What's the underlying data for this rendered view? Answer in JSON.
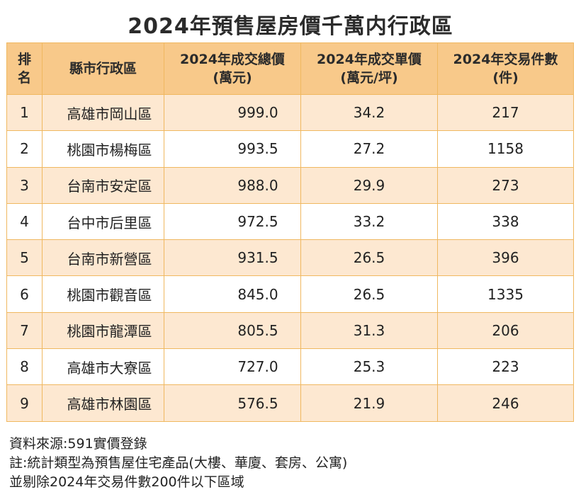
{
  "title": "2024年預售屋房價千萬内行政區",
  "table": {
    "headers": [
      {
        "line1": "排",
        "line2": "名"
      },
      {
        "line1": "縣市行政區",
        "line2": ""
      },
      {
        "line1": "2024年成交總價",
        "line2": "(萬元)"
      },
      {
        "line1": "2024年成交單價",
        "line2": "(萬元/坪)"
      },
      {
        "line1": "2024年交易件數",
        "line2": "(件)"
      }
    ],
    "rows": [
      {
        "rank": "1",
        "district": "高雄市岡山區",
        "total": "999.0",
        "unit": "34.2",
        "count": "217"
      },
      {
        "rank": "2",
        "district": "桃園市楊梅區",
        "total": "993.5",
        "unit": "27.2",
        "count": "1158"
      },
      {
        "rank": "3",
        "district": "台南市安定區",
        "total": "988.0",
        "unit": "29.9",
        "count": "273"
      },
      {
        "rank": "4",
        "district": "台中市后里區",
        "total": "972.5",
        "unit": "33.2",
        "count": "338"
      },
      {
        "rank": "5",
        "district": "台南市新營區",
        "total": "931.5",
        "unit": "26.5",
        "count": "396"
      },
      {
        "rank": "6",
        "district": "桃園市觀音區",
        "total": "845.0",
        "unit": "26.5",
        "count": "1335"
      },
      {
        "rank": "7",
        "district": "桃園市龍潭區",
        "total": "805.5",
        "unit": "31.3",
        "count": "206"
      },
      {
        "rank": "8",
        "district": "高雄市大寮區",
        "total": "727.0",
        "unit": "25.3",
        "count": "223"
      },
      {
        "rank": "9",
        "district": "高雄市林園區",
        "total": "576.5",
        "unit": "21.9",
        "count": "246"
      }
    ]
  },
  "notes": [
    "資料來源:591實價登錄",
    "註:統計類型為預售屋住宅產品(大樓、華廈、套房、公寓)",
    "並剔除2024年交易件數200件以下區域"
  ],
  "colors": {
    "header_bg": "#f8c98a",
    "odd_row_bg": "#fde8d1",
    "even_row_bg": "#ffffff",
    "border": "#f0b860"
  }
}
